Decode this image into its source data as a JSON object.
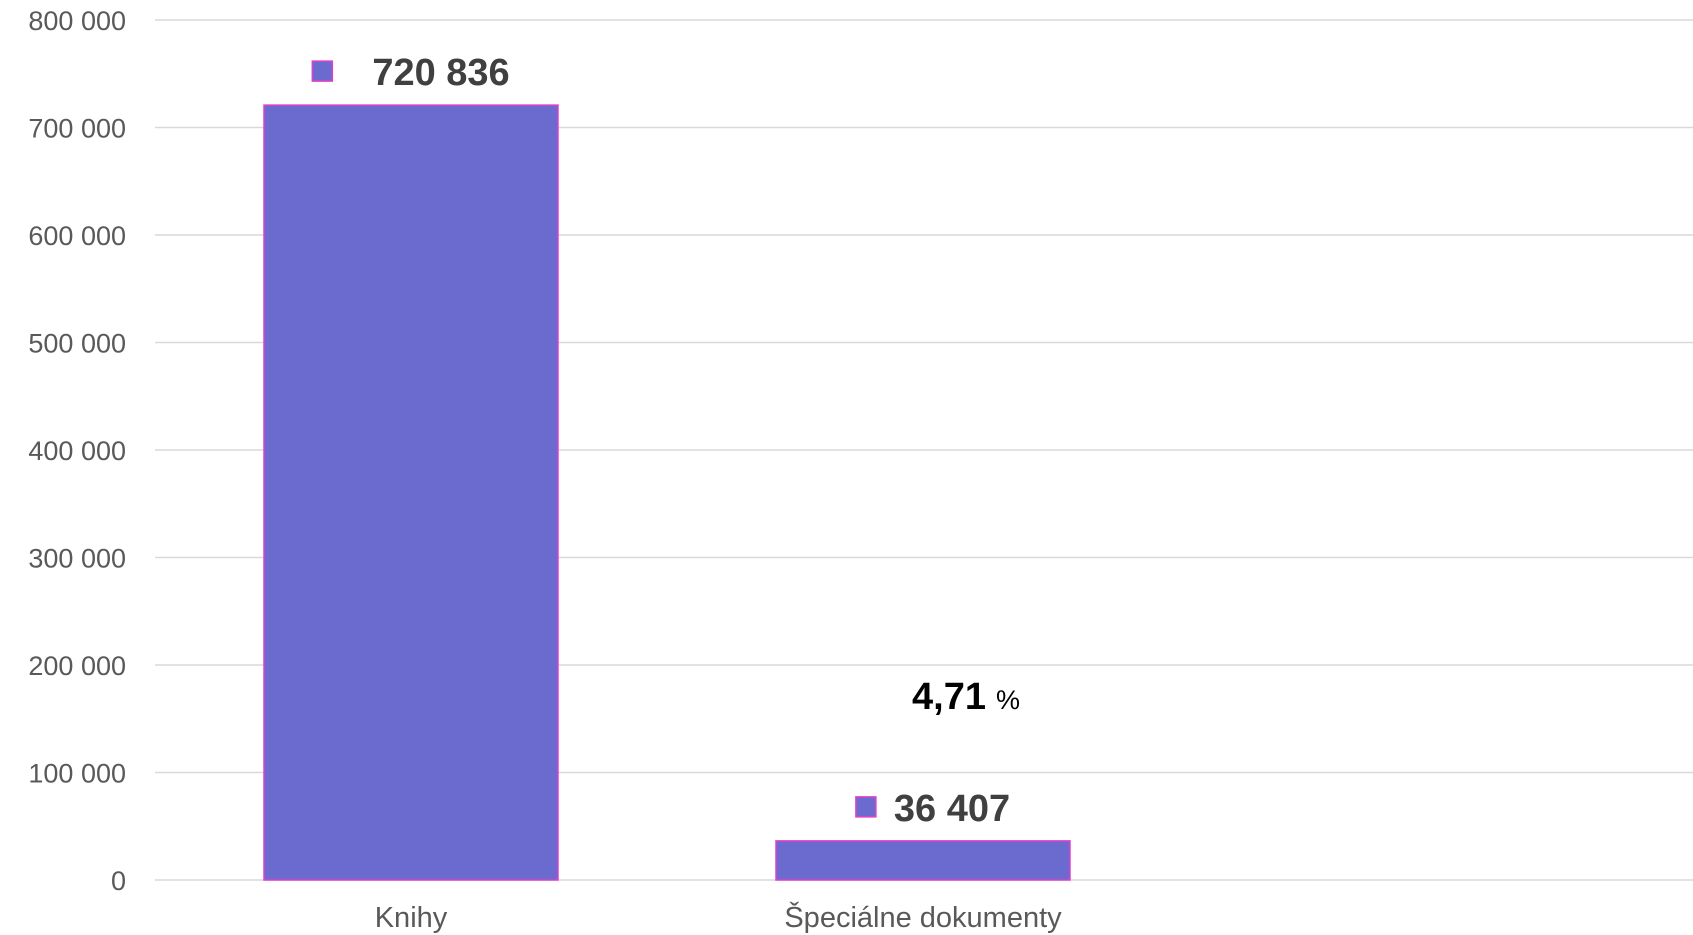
{
  "chart_data": {
    "type": "bar",
    "categories": [
      "Knihy",
      "Špeciálne dokumenty"
    ],
    "values": [
      720836,
      36407
    ],
    "value_labels": [
      "720 836",
      "36 407"
    ],
    "ylim": [
      0,
      800000
    ],
    "yticks": [
      0,
      100000,
      200000,
      300000,
      400000,
      500000,
      600000,
      700000,
      800000
    ],
    "ytick_labels": [
      "0",
      "100 000",
      "200 000",
      "300 000",
      "400 000",
      "500 000",
      "600 000",
      "700 000",
      "800 000"
    ],
    "annotation": {
      "value": "4,71",
      "unit": "%"
    },
    "grid": true,
    "legend": "none",
    "bar_color": "#6b6bcf",
    "bar_border_color": "#e040c8",
    "gridline_color": "#d9d9d9"
  }
}
